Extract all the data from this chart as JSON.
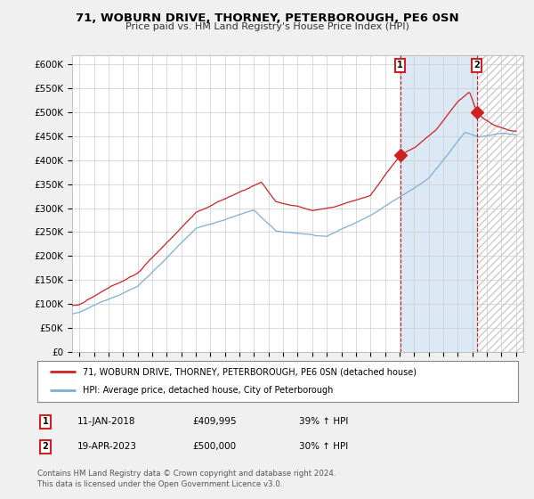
{
  "title": "71, WOBURN DRIVE, THORNEY, PETERBOROUGH, PE6 0SN",
  "subtitle": "Price paid vs. HM Land Registry's House Price Index (HPI)",
  "ylabel_ticks": [
    "£0",
    "£50K",
    "£100K",
    "£150K",
    "£200K",
    "£250K",
    "£300K",
    "£350K",
    "£400K",
    "£450K",
    "£500K",
    "£550K",
    "£600K"
  ],
  "ylim": [
    0,
    620000
  ],
  "xlim_start": 1995.5,
  "xlim_end": 2026.5,
  "hpi_color": "#7ab0d4",
  "price_color": "#cc2222",
  "marker1_date_x": 2018.04,
  "marker2_date_x": 2023.29,
  "marker1_price": 409995,
  "marker2_price": 500000,
  "legend_line1": "71, WOBURN DRIVE, THORNEY, PETERBOROUGH, PE6 0SN (detached house)",
  "legend_line2": "HPI: Average price, detached house, City of Peterborough",
  "annotation1_label": "1",
  "annotation2_label": "2",
  "table_row1": [
    "1",
    "11-JAN-2018",
    "£409,995",
    "39% ↑ HPI"
  ],
  "table_row2": [
    "2",
    "19-APR-2023",
    "£500,000",
    "30% ↑ HPI"
  ],
  "footer1": "Contains HM Land Registry data © Crown copyright and database right 2024.",
  "footer2": "This data is licensed under the Open Government Licence v3.0.",
  "background_color": "#f0f0f0",
  "plot_bg_color": "#ffffff",
  "grid_color": "#cccccc",
  "shade_color": "#dce9f5",
  "hatch_color": "#cccccc"
}
